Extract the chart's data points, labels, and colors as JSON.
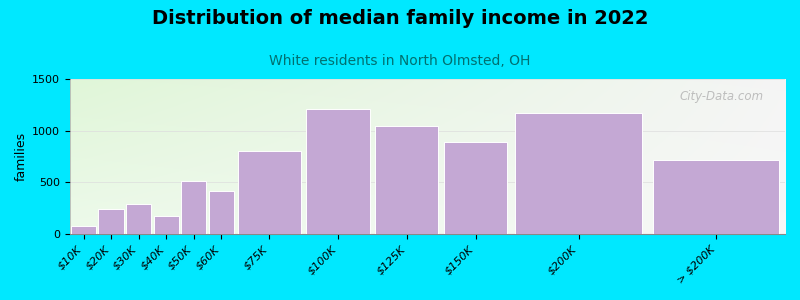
{
  "title": "Distribution of median family income in 2022",
  "subtitle": "White residents in North Olmsted, OH",
  "ylabel": "families",
  "categories": [
    "$10K",
    "$20K",
    "$30K",
    "$40K",
    "$50K",
    "$60K",
    "$75K",
    "$100K",
    "$125K",
    "$150K",
    "$200K",
    "> $200K"
  ],
  "values": [
    80,
    240,
    290,
    175,
    510,
    415,
    800,
    1210,
    1040,
    890,
    1170,
    720
  ],
  "bar_lefts": [
    0,
    10,
    20,
    30,
    40,
    50,
    60,
    85,
    110,
    135,
    160,
    210
  ],
  "bar_widths": [
    10,
    10,
    10,
    10,
    10,
    10,
    25,
    25,
    25,
    25,
    50,
    50
  ],
  "bar_color": "#c4a8d4",
  "bar_edge_color": "white",
  "background_color": "#00e8ff",
  "grad_color_tl": [
    0.878,
    0.965,
    0.847
  ],
  "grad_color_tr": [
    0.96,
    0.96,
    0.96
  ],
  "grad_color_bl": [
    0.93,
    0.98,
    0.92
  ],
  "grad_color_br": [
    0.97,
    0.97,
    0.97
  ],
  "ylim": [
    0,
    1500
  ],
  "yticks": [
    0,
    500,
    1000,
    1500
  ],
  "xlim": [
    0,
    260
  ],
  "title_fontsize": 14,
  "subtitle_fontsize": 10,
  "ylabel_fontsize": 9,
  "tick_fontsize": 8,
  "watermark": "City-Data.com",
  "tick_positions": [
    5,
    15,
    25,
    35,
    45,
    55,
    72.5,
    97.5,
    122.5,
    147.5,
    185,
    235
  ],
  "grid_color": "#dddddd",
  "subtitle_color": "#007070"
}
